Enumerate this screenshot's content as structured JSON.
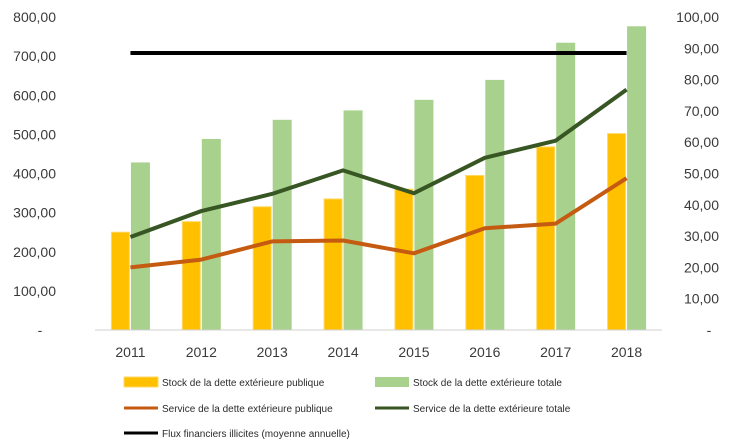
{
  "chart_data": {
    "type": "bar",
    "categories": [
      "2011",
      "2012",
      "2013",
      "2014",
      "2015",
      "2016",
      "2017",
      "2018"
    ],
    "y_left": {
      "lim": [
        0,
        800
      ],
      "ticks": [
        0,
        100,
        200,
        300,
        400,
        500,
        600,
        700,
        800
      ],
      "tick_labels": [
        "-",
        "100,00",
        "200,00",
        "300,00",
        "400,00",
        "500,00",
        "600,00",
        "700,00",
        "800,00"
      ]
    },
    "y_right": {
      "lim": [
        0,
        100
      ],
      "ticks": [
        0,
        10,
        20,
        30,
        40,
        50,
        60,
        70,
        80,
        90,
        100
      ],
      "tick_labels": [
        "-",
        "10,00",
        "20,00",
        "30,00",
        "40,00",
        "50,00",
        "60,00",
        "70,00",
        "80,00",
        "90,00",
        "100,00"
      ]
    },
    "series": [
      {
        "name": "Stock de la dette extérieure publique",
        "type": "bar",
        "axis": "left",
        "color": "#ffc000",
        "edge": "#ffd966",
        "values": [
          250,
          277,
          315,
          335,
          360,
          395,
          468,
          502
        ]
      },
      {
        "name": "Stock de la dette extérieure totale",
        "type": "bar",
        "axis": "left",
        "color": "#a9d18e",
        "edge": "#a9d18e",
        "values": [
          427,
          487,
          536,
          560,
          587,
          638,
          733,
          775
        ]
      },
      {
        "name": "Service de la dette extérieure publique",
        "type": "line",
        "axis": "right",
        "color": "#c55a11",
        "values": [
          20,
          22.5,
          28.3,
          28.6,
          24.5,
          32.5,
          34,
          48.5
        ]
      },
      {
        "name": "Service de la dette extérieure totale",
        "type": "line",
        "axis": "right",
        "color": "#375623",
        "values": [
          29.7,
          38,
          43.5,
          51,
          43.7,
          55,
          60.5,
          76.8
        ]
      },
      {
        "name": "Flux financiers illicites (moyenne annuelle)",
        "type": "line",
        "axis": "right",
        "color": "#000000",
        "values": [
          88.5,
          88.5,
          88.5,
          88.5,
          88.5,
          88.5,
          88.5,
          88.5
        ]
      }
    ],
    "legend_position": "bottom",
    "grid": false,
    "title": "",
    "xlabel": "",
    "ylabel": ""
  }
}
